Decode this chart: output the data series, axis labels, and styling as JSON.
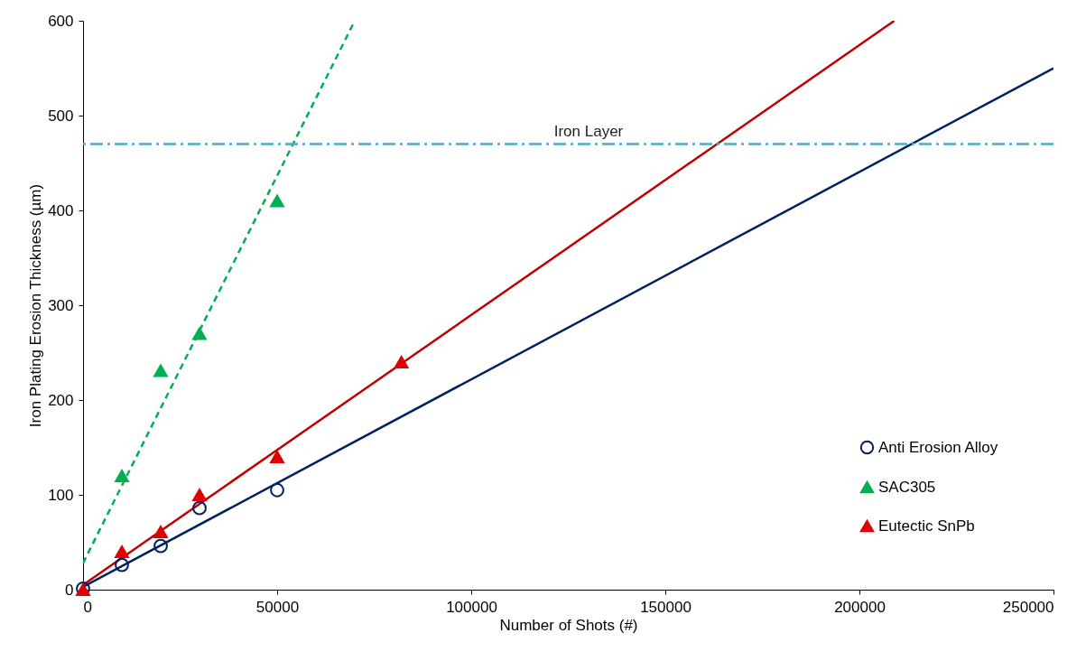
{
  "chart_data": {
    "type": "scatter",
    "xlabel": "Number of Shots (#)",
    "ylabel": "Iron Plating Erosion Thickness   (µm)",
    "xlim": [
      0,
      250000
    ],
    "ylim": [
      0,
      600
    ],
    "xticks": [
      0,
      50000,
      100000,
      150000,
      200000,
      250000
    ],
    "yticks": [
      0,
      100,
      200,
      300,
      400,
      500,
      600
    ],
    "grid": false,
    "legend": "bottom right",
    "series": [
      {
        "name": "Anti Erosion Alloy",
        "color": "#002060",
        "marker": "circle",
        "x": [
          0,
          10000,
          20000,
          30000,
          50000
        ],
        "values": [
          1,
          26,
          46,
          86,
          105
        ]
      },
      {
        "name": "SAC305",
        "color": "#00b050",
        "marker": "triangle",
        "x": [
          10000,
          20000,
          30000,
          50000
        ],
        "values": [
          120,
          231,
          270,
          410
        ]
      },
      {
        "name": "Eutectic SnPb",
        "color": "#e00000",
        "marker": "triangle",
        "x": [
          0,
          10000,
          20000,
          30000,
          50000,
          82000
        ],
        "values": [
          0,
          40,
          61,
          100,
          140,
          240
        ]
      },
      {
        "type": "line",
        "color": "#002060",
        "line_style": "solid",
        "x": [
          0,
          250000
        ],
        "values": [
          3,
          550
        ]
      },
      {
        "type": "line",
        "color": "#00b050",
        "line_style": "dashed",
        "x": [
          0,
          70000
        ],
        "values": [
          28,
          600
        ]
      },
      {
        "type": "line",
        "color": "#c00000",
        "line_style": "solid",
        "x": [
          0,
          209000
        ],
        "values": [
          5,
          600
        ]
      }
    ],
    "ref_lines": [
      {
        "axis": "y",
        "value": 470,
        "label": "Iron Layer",
        "color": "#4bacc6",
        "line_style": "dashdot"
      }
    ]
  }
}
